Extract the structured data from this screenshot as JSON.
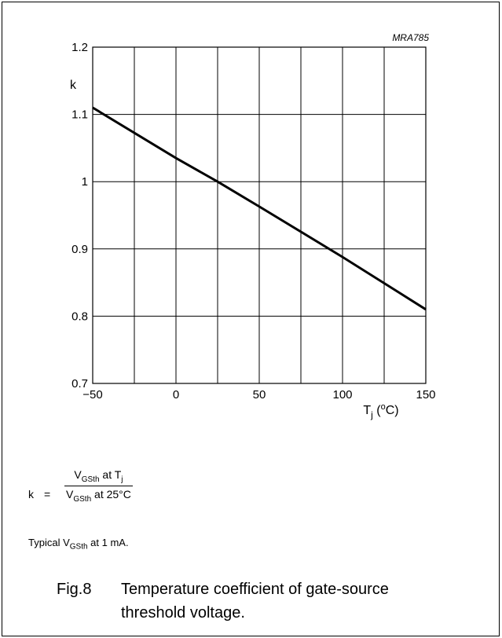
{
  "chart_data": {
    "type": "line",
    "code": "MRA785",
    "ylabel": "k",
    "xlabel_main": "T",
    "xlabel_sub": "j",
    "xlabel_unit_open": " (",
    "xlabel_unit_sup": "o",
    "xlabel_unit_close": "C)",
    "xlim": [
      -50,
      150
    ],
    "ylim": [
      0.7,
      1.2
    ],
    "xticks": [
      -50,
      0,
      50,
      100,
      150
    ],
    "xtick_labels": [
      "−50",
      "0",
      "50",
      "100",
      "150"
    ],
    "yticks": [
      0.7,
      0.8,
      0.9,
      1.0,
      1.1,
      1.2
    ],
    "ytick_labels": [
      "0.7",
      "0.8",
      "0.9",
      "1",
      "1.1",
      "1.2"
    ],
    "grid": true,
    "x": [
      -50,
      0,
      25,
      50,
      100,
      150
    ],
    "y": [
      1.11,
      1.035,
      1.0,
      0.963,
      0.888,
      0.81
    ]
  },
  "formula": {
    "k": "k",
    "eq": "=",
    "num_main": "V",
    "num_sub": "GSth",
    "num_tail": " at T",
    "num_tail_sub": "j",
    "den_main": "V",
    "den_sub": "GSth",
    "den_tail": " at 25°C"
  },
  "note": {
    "prefix": "Typical V",
    "sub": "GSth",
    "suffix": " at 1 mA."
  },
  "caption": {
    "fig": "Fig.8",
    "text": "Temperature coefficient of gate-source threshold voltage."
  }
}
